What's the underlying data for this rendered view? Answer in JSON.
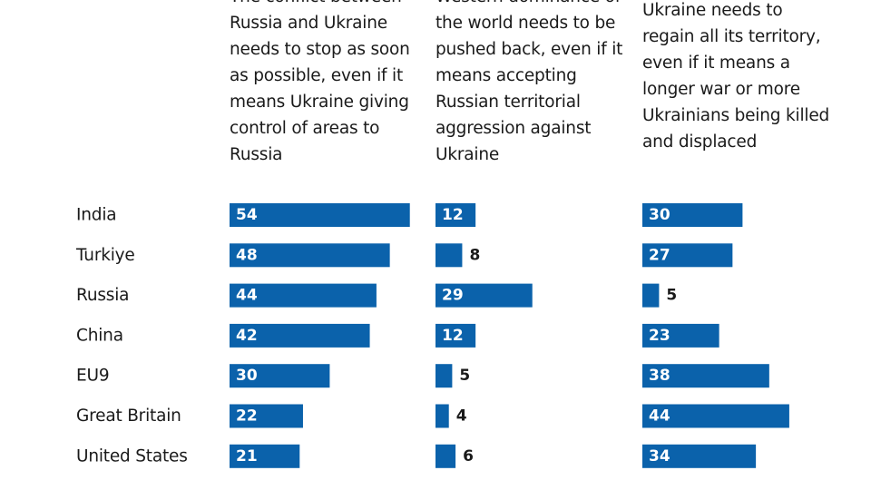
{
  "chart_data": {
    "type": "bar",
    "orientation": "horizontal",
    "bar_color": "#0b62ab",
    "categories": [
      "India",
      "Turkiye",
      "Russia",
      "China",
      "EU9",
      "Great Britain",
      "United States"
    ],
    "series": [
      {
        "label_lines": [
          "The conflict between",
          "Russia and Ukraine",
          "needs to stop as soon",
          "as possible, even if it",
          "means Ukraine giving",
          "control of areas to",
          "Russia"
        ],
        "values": [
          54,
          48,
          44,
          42,
          30,
          22,
          21
        ]
      },
      {
        "label_lines": [
          "Western dominance of",
          "the world needs to be",
          "pushed back, even if it",
          "means accepting",
          "Russian territorial",
          "aggression against",
          "Ukraine"
        ],
        "values": [
          12,
          8,
          29,
          12,
          5,
          4,
          6
        ]
      },
      {
        "label_lines": [
          "Ukraine needs to",
          "regain all its territory,",
          "even if it means a",
          "longer war or more",
          "Ukrainians being killed",
          "and displaced"
        ],
        "values": [
          30,
          27,
          5,
          23,
          38,
          44,
          34
        ]
      }
    ]
  }
}
